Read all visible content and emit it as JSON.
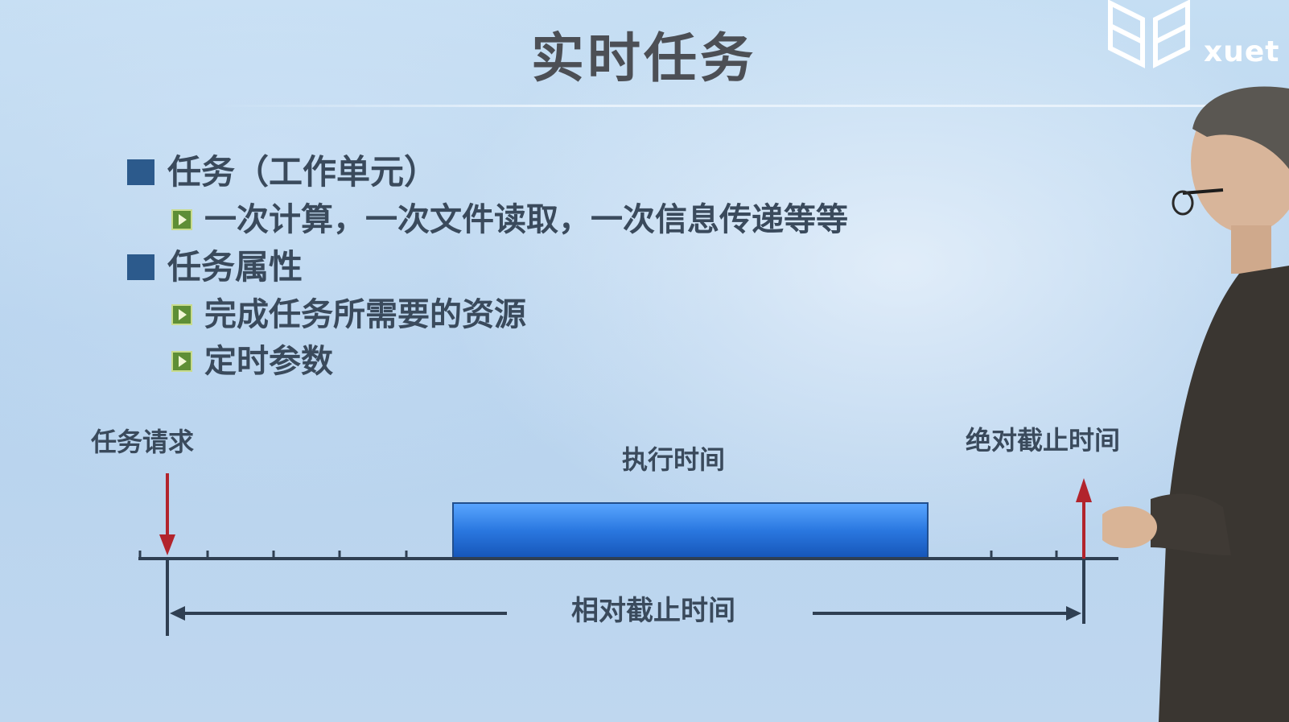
{
  "slide": {
    "title": "实时任务",
    "bullets": [
      {
        "text": "任务（工作单元）",
        "subs": [
          "一次计算，一次文件读取，一次信息传递等等"
        ]
      },
      {
        "text": "任务属性",
        "subs": [
          "完成任务所需要的资源",
          "定时参数"
        ]
      }
    ]
  },
  "diagram": {
    "task_request_label": "任务请求",
    "execution_time_label": "执行时间",
    "absolute_deadline_label": "绝对截止时间",
    "relative_deadline_label": "相对截止时间"
  },
  "logo": {
    "text": "xuet"
  },
  "colors": {
    "title": "#4c4f55",
    "bullet_square": "#2c5a8c",
    "bullet_triangle": "#5e8e36",
    "execution_bar": "#1f6fd6",
    "arrow_red": "#b2242c",
    "axis": "#2f3f52"
  },
  "icons": {
    "logo": "book-grid-logo-icon",
    "level1_bullet": "square-bullet-icon",
    "level2_bullet": "play-triangle-bullet-icon"
  }
}
